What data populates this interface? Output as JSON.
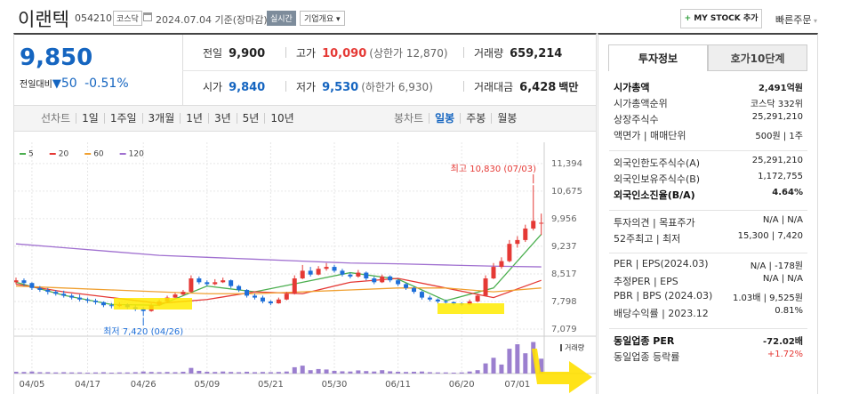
{
  "header": {
    "name": "이랜텍",
    "code": "054210",
    "market": "코스닥",
    "date": "2024.07.04 기준(장마감)",
    "realtime": "실시간",
    "overview": "기업개요",
    "mystock": "MY STOCK 추가",
    "quick_order": "빠른주문"
  },
  "price": {
    "current": "9,850",
    "change_label": "전일대비",
    "change": "50",
    "rate": "-0.51%"
  },
  "quote": {
    "cells": [
      [
        {
          "label": "전일",
          "value": "9,900"
        },
        {
          "label": "고가",
          "value": "10,090",
          "extra": "(상한가 12,870)"
        },
        {
          "label": "거래량",
          "value": "659,214"
        }
      ],
      [
        {
          "label": "시가",
          "value": "9,840"
        },
        {
          "label": "저가",
          "value": "9,530",
          "extra": "(하한가 6,930)"
        },
        {
          "label": "거래대금",
          "value": "6,428",
          "extra": "백만"
        }
      ]
    ]
  },
  "toolbar": {
    "line_chart": "선차트",
    "periods": [
      "1일",
      "1주일",
      "3개월",
      "1년",
      "3년",
      "5년",
      "10년"
    ],
    "candle_chart": "봉차트",
    "candle_periods": [
      "일봉",
      "주봉",
      "월봉"
    ]
  },
  "chart": {
    "type": "candlestick",
    "ylim": [
      6940,
      11600
    ],
    "yticks": [
      {
        "value": 11394,
        "label": "11,394"
      },
      {
        "value": 10675,
        "label": "10,675"
      },
      {
        "value": 9956,
        "label": "9,956"
      },
      {
        "value": 9237,
        "label": "9,237"
      },
      {
        "value": 8517,
        "label": "8,517"
      },
      {
        "value": 7798,
        "label": "7,798"
      },
      {
        "value": 7079,
        "label": "7,079"
      }
    ],
    "xticks": [
      {
        "value": 2,
        "label": "04/05"
      },
      {
        "value": 9,
        "label": "04/17"
      },
      {
        "value": 16,
        "label": "04/26"
      },
      {
        "value": 24,
        "label": "05/09"
      },
      {
        "value": 32,
        "label": "05/21"
      },
      {
        "value": 40,
        "label": "05/30"
      },
      {
        "value": 48,
        "label": "06/11"
      },
      {
        "value": 56,
        "label": "06/20"
      },
      {
        "value": 63,
        "label": "07/01"
      }
    ],
    "grid": true,
    "up_color": "#e53935",
    "down_color": "#1e6fd9",
    "ohlc": [
      [
        8300,
        8420,
        8250,
        8350
      ],
      [
        8350,
        8400,
        8200,
        8280
      ],
      [
        8280,
        8300,
        8100,
        8150
      ],
      [
        8150,
        8200,
        8050,
        8100
      ],
      [
        8100,
        8150,
        7980,
        8050
      ],
      [
        8050,
        8100,
        7950,
        8000
      ],
      [
        8000,
        8080,
        7900,
        7950
      ],
      [
        7950,
        8000,
        7850,
        7900
      ],
      [
        7900,
        7980,
        7800,
        7850
      ],
      [
        7850,
        7900,
        7760,
        7820
      ],
      [
        7820,
        7870,
        7720,
        7780
      ],
      [
        7780,
        7800,
        7650,
        7700
      ],
      [
        7700,
        7760,
        7620,
        7680
      ],
      [
        7680,
        7780,
        7650,
        7720
      ],
      [
        7720,
        7750,
        7600,
        7650
      ],
      [
        7650,
        7700,
        7550,
        7600
      ],
      [
        7600,
        7650,
        7420,
        7550
      ],
      [
        7550,
        7750,
        7530,
        7700
      ],
      [
        7700,
        7850,
        7680,
        7800
      ],
      [
        7800,
        7950,
        7780,
        7900
      ],
      [
        7900,
        8020,
        7880,
        7980
      ],
      [
        7980,
        8100,
        7950,
        8050
      ],
      [
        8050,
        8480,
        8030,
        8400
      ],
      [
        8400,
        8450,
        8250,
        8300
      ],
      [
        8300,
        8350,
        8200,
        8250
      ],
      [
        8250,
        8380,
        8220,
        8300
      ],
      [
        8300,
        8420,
        8280,
        8350
      ],
      [
        8350,
        8370,
        8150,
        8200
      ],
      [
        8200,
        8230,
        8050,
        8100
      ],
      [
        8100,
        8120,
        7900,
        7950
      ],
      [
        7950,
        8000,
        7850,
        7900
      ],
      [
        7900,
        7950,
        7750,
        7800
      ],
      [
        7800,
        7830,
        7700,
        7750
      ],
      [
        7750,
        7900,
        7740,
        7850
      ],
      [
        7850,
        8050,
        7830,
        8000
      ],
      [
        8000,
        8480,
        7980,
        8400
      ],
      [
        8400,
        8750,
        8380,
        8600
      ],
      [
        8600,
        8700,
        8450,
        8500
      ],
      [
        8500,
        8720,
        8480,
        8650
      ],
      [
        8650,
        8800,
        8600,
        8700
      ],
      [
        8700,
        8750,
        8550,
        8600
      ],
      [
        8600,
        8650,
        8450,
        8500
      ],
      [
        8500,
        8550,
        8400,
        8450
      ],
      [
        8450,
        8620,
        8420,
        8550
      ],
      [
        8550,
        8580,
        8350,
        8400
      ],
      [
        8400,
        8450,
        8250,
        8300
      ],
      [
        8300,
        8500,
        8280,
        8450
      ],
      [
        8450,
        8480,
        8300,
        8350
      ],
      [
        8350,
        8380,
        8200,
        8250
      ],
      [
        8250,
        8280,
        8100,
        8150
      ],
      [
        8150,
        8180,
        8000,
        8050
      ],
      [
        8050,
        8080,
        7850,
        7900
      ],
      [
        7900,
        7950,
        7800,
        7850
      ],
      [
        7850,
        7880,
        7750,
        7800
      ],
      [
        7800,
        7850,
        7740,
        7780
      ],
      [
        7780,
        7800,
        7700,
        7750
      ],
      [
        7750,
        7780,
        7680,
        7720
      ],
      [
        7720,
        7850,
        7700,
        7800
      ],
      [
        7800,
        8000,
        7780,
        7950
      ],
      [
        7950,
        8480,
        7930,
        8400
      ],
      [
        8400,
        8800,
        8380,
        8700
      ],
      [
        8700,
        8950,
        8650,
        8850
      ],
      [
        8850,
        9400,
        8820,
        9300
      ],
      [
        9300,
        9500,
        9200,
        9400
      ],
      [
        9400,
        9800,
        9350,
        9700
      ],
      [
        9700,
        10830,
        9650,
        9900
      ],
      [
        9840,
        10090,
        9530,
        9850
      ]
    ],
    "volume": [
      80000,
      70000,
      90000,
      60000,
      60000,
      50000,
      60000,
      50000,
      50000,
      40000,
      50000,
      60000,
      40000,
      50000,
      50000,
      60000,
      90000,
      70000,
      60000,
      70000,
      60000,
      80000,
      250000,
      120000,
      80000,
      70000,
      90000,
      70000,
      60000,
      80000,
      60000,
      70000,
      60000,
      70000,
      90000,
      280000,
      350000,
      150000,
      200000,
      180000,
      120000,
      100000,
      90000,
      140000,
      110000,
      90000,
      150000,
      100000,
      80000,
      70000,
      80000,
      90000,
      60000,
      50000,
      50000,
      40000,
      50000,
      90000,
      150000,
      450000,
      700000,
      400000,
      1100000,
      1300000,
      900000,
      1400000,
      659214
    ],
    "volume_ylim": [
      0,
      1500000
    ],
    "volume_color": "#9b7fcf",
    "volume_label": "거래량",
    "ma_x": [
      0,
      6,
      12,
      18,
      24,
      30,
      36,
      42,
      48,
      54,
      60,
      66
    ],
    "ma": [
      {
        "name": "5",
        "color": "#4caf50",
        "values": [
          8300,
          7960,
          7720,
          7700,
          8200,
          8050,
          8300,
          8550,
          8380,
          7820,
          8150,
          9550
        ]
      },
      {
        "name": "20",
        "color": "#e53935",
        "values": [
          8250,
          8050,
          7900,
          7750,
          7850,
          8050,
          8000,
          8300,
          8400,
          8150,
          7900,
          8350
        ]
      },
      {
        "name": "60",
        "color": "#f0a030",
        "values": [
          8200,
          8150,
          8100,
          8050,
          8000,
          8000,
          8050,
          8100,
          8150,
          8150,
          8050,
          8150
        ]
      },
      {
        "name": "120",
        "color": "#a070d0",
        "values": [
          9300,
          9200,
          9100,
          9000,
          8950,
          8900,
          8850,
          8800,
          8780,
          8750,
          8720,
          8700
        ]
      }
    ],
    "high_label": "최고 10,830 (07/03)",
    "low_label": "최저 7,420 (04/26)"
  },
  "invest": {
    "tabs": [
      "투자정보",
      "호가10단계"
    ],
    "groups": [
      [
        [
          "시가총액",
          "2,491억원"
        ],
        [
          "시가총액순위",
          "코스닥 332위"
        ],
        [
          "상장주식수",
          "25,291,210"
        ],
        [
          "액면가 | 매매단위",
          "500원 | 1주"
        ]
      ],
      [
        [
          "외국인한도주식수(A)",
          "25,291,210"
        ],
        [
          "외국인보유주식수(B)",
          "1,172,755"
        ],
        [
          "외국인소진율(B/A)",
          "4.64%"
        ]
      ],
      [
        [
          "투자의견 | 목표주가",
          "N/A | N/A"
        ],
        [
          "52주최고 | 최저",
          "15,300 | 7,420"
        ]
      ],
      [
        [
          "PER | EPS(2024.03)",
          "N/A | -178원"
        ],
        [
          "추정PER | EPS",
          "N/A | N/A"
        ],
        [
          "PBR | BPS (2024.03)",
          "1.03배 | 9,525원"
        ],
        [
          "배당수익률 | 2023.12",
          "0.81%"
        ]
      ],
      [
        [
          "동일업종 PER",
          "-72.02배"
        ],
        [
          "동일업종 등락률",
          "+1.72%"
        ]
      ]
    ]
  }
}
